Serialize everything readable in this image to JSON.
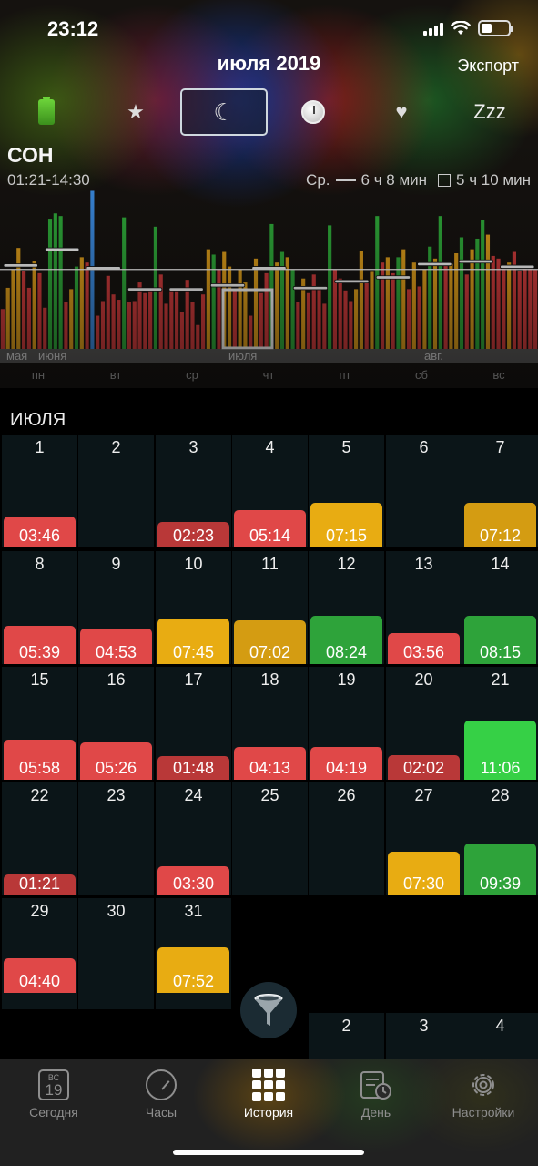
{
  "status": {
    "time": "23:12"
  },
  "nav": {
    "title": "июля 2019",
    "export_label": "Экспорт"
  },
  "categories": [
    {
      "name": "battery-icon",
      "selected": false
    },
    {
      "name": "star-icon",
      "glyph": "★",
      "selected": false
    },
    {
      "name": "moon-icon",
      "glyph": "☾",
      "selected": true
    },
    {
      "name": "clock-icon",
      "selected": false
    },
    {
      "name": "heart-icon",
      "glyph": "♥",
      "selected": false
    },
    {
      "name": "zzz-icon",
      "glyph": "Zzz",
      "selected": false
    }
  ],
  "section": {
    "title": "СОН",
    "time_range": "01:21-14:30",
    "avg_label": "Ср.",
    "avg_value": "6 ч 8 мин",
    "box_value": "5 ч 10 мин"
  },
  "chart_data": {
    "type": "bar",
    "unit": "hours",
    "month_labels": [
      "мая",
      "июня",
      "июля",
      "авг."
    ],
    "weekday_labels": [
      "пн",
      "вт",
      "ср",
      "чт",
      "пт",
      "сб",
      "вс"
    ],
    "colors": {
      "red": "#d63c3c",
      "yellow": "#e5a21a",
      "green": "#2fae3a",
      "blue": "#3c8ee6",
      "avg_line": "#ffffff"
    },
    "ylim": [
      0,
      12
    ],
    "values": [
      3.0,
      4.6,
      6.0,
      7.6,
      5.9,
      4.6,
      6.6,
      5.7,
      3.1,
      9.8,
      10.2,
      10.0,
      3.5,
      4.5,
      6.2,
      6.9,
      6.5,
      11.9,
      2.5,
      3.6,
      5.5,
      4.1,
      3.7,
      9.9,
      3.5,
      3.6,
      5.0,
      4.2,
      4.5,
      9.2,
      5.6,
      3.4,
      4.6,
      4.4,
      2.8,
      5.2,
      3.5,
      1.8,
      4.1,
      7.5,
      7.1,
      6.0,
      7.3,
      6.2,
      4.5,
      6.0,
      5.0,
      2.5,
      6.8,
      4.2,
      5.7,
      9.4,
      6.5,
      7.3,
      6.9,
      6.0,
      3.5,
      5.3,
      4.2,
      5.6,
      4.7,
      3.4,
      9.3,
      6.0,
      5.3,
      4.4,
      3.6,
      4.5,
      7.4,
      5.1,
      5.8,
      10.0,
      6.5,
      6.9,
      5.7,
      6.9,
      7.5,
      4.5,
      6.5,
      4.7,
      6.0,
      7.7,
      6.8,
      10.0,
      6.5,
      6.4,
      7.2,
      8.4,
      5.6,
      7.5,
      8.3,
      9.7,
      8.6,
      7.0,
      6.8,
      6.1,
      6.5,
      7.3,
      5.9,
      6.3,
      6.2,
      6.0
    ],
    "series_colors": [
      "red",
      "yellow",
      "yellow",
      "yellow",
      "red",
      "red",
      "yellow",
      "red",
      "red",
      "green",
      "green",
      "green",
      "red",
      "yellow",
      "green",
      "yellow",
      "red",
      "blue",
      "red",
      "red",
      "red",
      "red",
      "red",
      "green",
      "red",
      "red",
      "red",
      "red",
      "red",
      "green",
      "red",
      "red",
      "red",
      "red",
      "red",
      "red",
      "red",
      "red",
      "red",
      "yellow",
      "green",
      "red",
      "yellow",
      "yellow",
      "red",
      "yellow",
      "yellow",
      "red",
      "yellow",
      "red",
      "red",
      "green",
      "yellow",
      "green",
      "yellow",
      "green",
      "red",
      "yellow",
      "red",
      "red",
      "red",
      "red",
      "green",
      "red",
      "red",
      "red",
      "red",
      "yellow",
      "yellow",
      "red",
      "yellow",
      "green",
      "red",
      "yellow",
      "red",
      "green",
      "yellow",
      "red",
      "yellow",
      "red",
      "yellow",
      "green",
      "yellow",
      "green",
      "red",
      "yellow",
      "yellow",
      "green",
      "red",
      "yellow",
      "green",
      "green",
      "yellow",
      "red",
      "red",
      "red",
      "yellow",
      "red",
      "red",
      "red",
      "red",
      "red"
    ],
    "weekly_avg": [
      6.3,
      7.5,
      6.1,
      4.5,
      4.5,
      4.8,
      6.1,
      4.6,
      5.1,
      5.4,
      6.4,
      6.6,
      6.2
    ]
  },
  "calendar": {
    "month_label": "ИЮЛЯ",
    "colors": {
      "red": "#e04848",
      "darkred": "#b93838",
      "yellow": "#e8ac12",
      "dark_yellow": "#d49c12",
      "green": "#2ea33a",
      "bright_green": "#36d046"
    },
    "cells": [
      {
        "day": "1",
        "dur": "03:46",
        "color": "red",
        "frac": 0.34
      },
      {
        "day": "2",
        "dur": "",
        "color": "",
        "frac": 0
      },
      {
        "day": "3",
        "dur": "02:23",
        "color": "darkred",
        "frac": 0.28
      },
      {
        "day": "4",
        "dur": "05:14",
        "color": "red",
        "frac": 0.41
      },
      {
        "day": "5",
        "dur": "07:15",
        "color": "yellow",
        "frac": 0.49
      },
      {
        "day": "6",
        "dur": "",
        "color": "",
        "frac": 0
      },
      {
        "day": "7",
        "dur": "07:12",
        "color": "dark_yellow",
        "frac": 0.49
      },
      {
        "day": "8",
        "dur": "05:39",
        "color": "red",
        "frac": 0.42
      },
      {
        "day": "9",
        "dur": "04:53",
        "color": "red",
        "frac": 0.39
      },
      {
        "day": "10",
        "dur": "07:45",
        "color": "yellow",
        "frac": 0.5
      },
      {
        "day": "11",
        "dur": "07:02",
        "color": "dark_yellow",
        "frac": 0.48
      },
      {
        "day": "12",
        "dur": "08:24",
        "color": "green",
        "frac": 0.53
      },
      {
        "day": "13",
        "dur": "03:56",
        "color": "red",
        "frac": 0.34
      },
      {
        "day": "14",
        "dur": "08:15",
        "color": "green",
        "frac": 0.53
      },
      {
        "day": "15",
        "dur": "05:58",
        "color": "red",
        "frac": 0.44
      },
      {
        "day": "16",
        "dur": "05:26",
        "color": "red",
        "frac": 0.41
      },
      {
        "day": "17",
        "dur": "01:48",
        "color": "darkred",
        "frac": 0.26
      },
      {
        "day": "18",
        "dur": "04:13",
        "color": "red",
        "frac": 0.36
      },
      {
        "day": "19",
        "dur": "04:19",
        "color": "red",
        "frac": 0.36
      },
      {
        "day": "20",
        "dur": "02:02",
        "color": "darkred",
        "frac": 0.27
      },
      {
        "day": "21",
        "dur": "11:06",
        "color": "bright_green",
        "frac": 0.65
      },
      {
        "day": "22",
        "dur": "01:21",
        "color": "darkred",
        "frac": 0.23
      },
      {
        "day": "23",
        "dur": "",
        "color": "",
        "frac": 0
      },
      {
        "day": "24",
        "dur": "03:30",
        "color": "red",
        "frac": 0.32
      },
      {
        "day": "25",
        "dur": "",
        "color": "",
        "frac": 0
      },
      {
        "day": "26",
        "dur": "",
        "color": "",
        "frac": 0
      },
      {
        "day": "27",
        "dur": "07:30",
        "color": "yellow",
        "frac": 0.48
      },
      {
        "day": "28",
        "dur": "09:39",
        "color": "green",
        "frac": 0.57
      },
      {
        "day": "29",
        "dur": "04:40",
        "color": "red",
        "frac": 0.38
      },
      {
        "day": "30",
        "dur": "",
        "color": "",
        "frac": 0
      },
      {
        "day": "31",
        "dur": "07:52",
        "color": "yellow",
        "frac": 0.5
      }
    ],
    "next_month_days": [
      "2",
      "3",
      "4"
    ]
  },
  "tabs": [
    {
      "label": "Сегодня",
      "icon": "calendar-icon",
      "icon_top": "ВС",
      "icon_day": "19",
      "active": false
    },
    {
      "label": "Часы",
      "icon": "gauge-icon",
      "active": false
    },
    {
      "label": "История",
      "icon": "grid-icon",
      "active": true
    },
    {
      "label": "День",
      "icon": "day-log-icon",
      "active": false
    },
    {
      "label": "Настройки",
      "icon": "settings-gear-icon",
      "active": false
    }
  ]
}
